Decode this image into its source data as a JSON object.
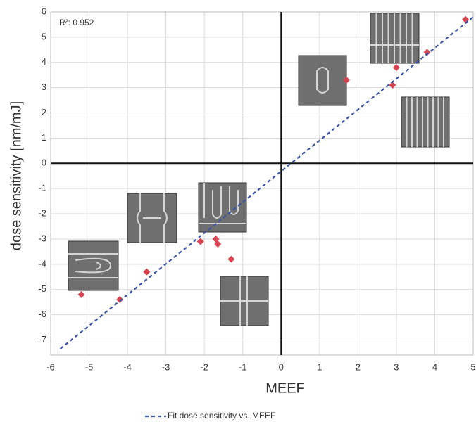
{
  "chart_data": {
    "type": "scatter",
    "x_label": "MEEF",
    "y_label": "dose sensitivity [nm/mJ]",
    "annotation": "R²: 0.952",
    "xlim": [
      -6,
      5
    ],
    "ylim": [
      -7.6,
      6
    ],
    "xticks": [
      -6,
      -5,
      -4,
      -3,
      -2,
      -1,
      0,
      1,
      2,
      3,
      4,
      5
    ],
    "yticks": [
      -7,
      -6,
      -5,
      -4,
      -3,
      -2,
      -1,
      0,
      1,
      2,
      3,
      4,
      5,
      6
    ],
    "grid": true,
    "series": [
      {
        "color": "#d6434f",
        "x": [
          -5.2,
          -4.2,
          -3.5,
          -2.1,
          -1.7,
          -1.65,
          -1.3,
          1.7,
          2.9,
          3.0,
          3.8,
          4.8
        ],
        "values": [
          -5.2,
          -5.4,
          -4.3,
          -3.1,
          -3.0,
          -3.2,
          -3.8,
          3.3,
          3.1,
          3.8,
          4.4,
          5.7
        ]
      },
      {
        "name": "Fit dose sensitivity vs. MEEF",
        "color": "#3b55a8",
        "x": [
          -5.75,
          5.0
        ],
        "values": [
          -7.35,
          5.8
        ]
      }
    ]
  }
}
